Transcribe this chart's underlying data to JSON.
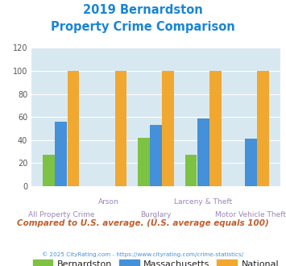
{
  "title_line1": "2019 Bernardston",
  "title_line2": "Property Crime Comparison",
  "categories": [
    "All Property Crime",
    "Arson",
    "Burglary",
    "Larceny & Theft",
    "Motor Vehicle Theft"
  ],
  "bernardston": [
    27,
    0,
    42,
    27,
    0
  ],
  "massachusetts": [
    56,
    0,
    53,
    59,
    41
  ],
  "national": [
    100,
    100,
    100,
    100,
    100
  ],
  "bar_colors": {
    "bernardston": "#7dc242",
    "massachusetts": "#4490d9",
    "national": "#f0a830"
  },
  "ylim": [
    0,
    120
  ],
  "yticks": [
    0,
    20,
    40,
    60,
    80,
    100,
    120
  ],
  "title_color": "#1a85d6",
  "label_color": "#9b85b8",
  "background_color": "#d8e8f0",
  "footer_text": "Compared to U.S. average. (U.S. average equals 100)",
  "footer_color": "#c06030",
  "copyright_text": "© 2025 CityRating.com - https://www.cityrating.com/crime-statistics/",
  "copyright_color": "#4490d9",
  "legend_labels": [
    "Bernardston",
    "Massachusetts",
    "National"
  ],
  "x_label_top": [
    "",
    "Arson",
    "",
    "Larceny & Theft",
    ""
  ],
  "x_label_bottom": [
    "All Property Crime",
    "",
    "Burglary",
    "",
    "Motor Vehicle Theft"
  ]
}
